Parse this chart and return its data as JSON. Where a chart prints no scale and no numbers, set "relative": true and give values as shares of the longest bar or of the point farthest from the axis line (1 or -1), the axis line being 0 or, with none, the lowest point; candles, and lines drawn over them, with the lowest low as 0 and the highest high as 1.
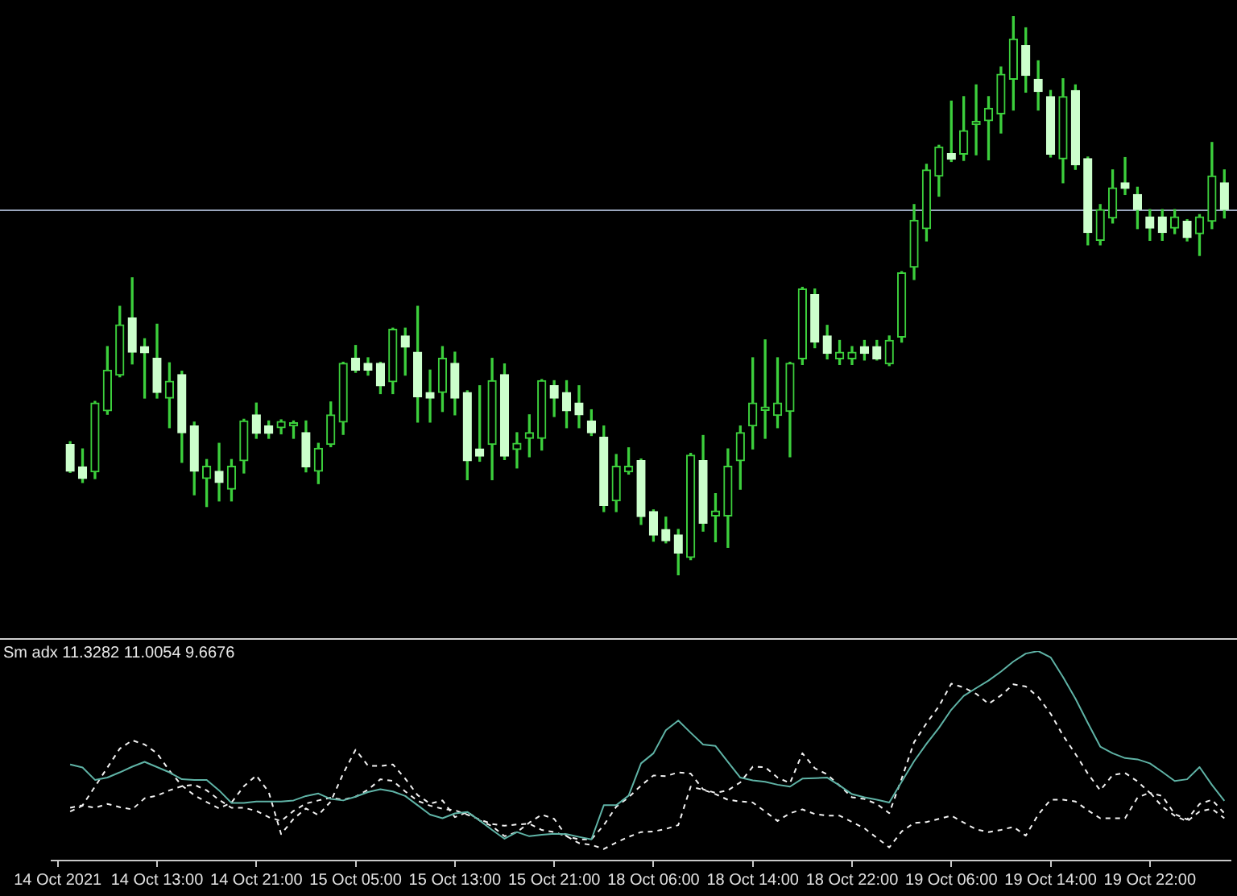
{
  "chart_data": [
    {
      "type": "candlestick",
      "relative": true,
      "tick_labels": false,
      "color": "#3ccf3c",
      "categories": [
        null,
        null,
        null,
        null,
        null,
        null,
        null,
        null,
        null,
        null,
        null,
        null,
        null,
        null,
        null,
        null,
        null,
        null,
        null,
        null,
        null,
        null,
        null,
        null,
        null,
        null,
        null,
        null,
        null,
        null,
        null,
        null,
        null,
        null,
        null,
        null,
        null,
        null,
        null,
        null,
        null,
        null,
        null,
        null,
        null,
        null,
        null,
        null,
        null,
        null,
        null,
        null,
        null,
        null,
        null,
        null,
        null,
        null,
        null,
        null,
        null,
        null,
        null,
        null,
        null,
        null,
        null,
        null,
        null,
        null,
        null,
        null,
        null,
        null,
        null,
        null,
        null,
        null,
        null,
        null,
        null,
        null,
        null,
        null,
        null,
        null,
        null,
        null,
        null,
        null,
        null,
        null,
        null,
        null,
        null
      ],
      "ohlc": [
        null,
        [
          0.234,
          0.239,
          0.184,
          0.186
        ],
        [
          0.194,
          0.226,
          0.166,
          0.173
        ],
        [
          0.185,
          0.311,
          0.173,
          0.308
        ],
        [
          0.294,
          0.409,
          0.288,
          0.367
        ],
        [
          0.358,
          0.481,
          0.355,
          0.448
        ],
        [
          0.46,
          0.532,
          0.378,
          0.399
        ],
        [
          0.409,
          0.423,
          0.317,
          0.398
        ],
        [
          0.388,
          0.449,
          0.317,
          0.327
        ],
        [
          0.317,
          0.38,
          0.264,
          0.347
        ],
        [
          0.359,
          0.365,
          0.202,
          0.255
        ],
        [
          0.267,
          0.274,
          0.144,
          0.186
        ],
        [
          0.173,
          0.207,
          0.123,
          0.195
        ],
        [
          0.186,
          0.236,
          0.133,
          0.166
        ],
        [
          0.154,
          0.207,
          0.133,
          0.195
        ],
        [
          0.205,
          0.279,
          0.183,
          0.276
        ],
        [
          0.287,
          0.308,
          0.245,
          0.254
        ],
        [
          0.267,
          0.276,
          0.245,
          0.254
        ],
        [
          0.264,
          0.278,
          0.253,
          0.275
        ],
        [
          0.267,
          0.276,
          0.245,
          0.267
        ],
        [
          0.255,
          0.276,
          0.185,
          0.194
        ],
        [
          0.186,
          0.236,
          0.164,
          0.227
        ],
        [
          0.234,
          0.31,
          0.23,
          0.287
        ],
        [
          0.274,
          0.381,
          0.252,
          0.379
        ],
        [
          0.388,
          0.411,
          0.363,
          0.367
        ],
        [
          0.379,
          0.389,
          0.358,
          0.367
        ],
        [
          0.379,
          0.381,
          0.325,
          0.339
        ],
        [
          0.346,
          0.442,
          0.325,
          0.44
        ],
        [
          0.428,
          0.442,
          0.358,
          0.408
        ],
        [
          0.399,
          0.481,
          0.274,
          0.319
        ],
        [
          0.327,
          0.367,
          0.274,
          0.317
        ],
        [
          0.327,
          0.409,
          0.293,
          0.388
        ],
        [
          0.379,
          0.399,
          0.287,
          0.317
        ],
        [
          0.327,
          0.33,
          0.171,
          0.205
        ],
        [
          0.226,
          0.339,
          0.204,
          0.213
        ],
        [
          0.234,
          0.388,
          0.171,
          0.348
        ],
        [
          0.359,
          0.378,
          0.207,
          0.213
        ],
        [
          0.225,
          0.255,
          0.192,
          0.236
        ],
        [
          0.245,
          0.287,
          0.212,
          0.255
        ],
        [
          0.245,
          0.35,
          0.224,
          0.348
        ],
        [
          0.339,
          0.348,
          0.284,
          0.317
        ],
        [
          0.327,
          0.348,
          0.264,
          0.294
        ],
        [
          0.308,
          0.339,
          0.264,
          0.287
        ],
        [
          0.276,
          0.296,
          0.25,
          0.255
        ],
        [
          0.247,
          0.267,
          0.114,
          0.125
        ],
        [
          0.133,
          0.216,
          0.114,
          0.195
        ],
        [
          0.185,
          0.228,
          0.181,
          0.195
        ],
        [
          0.205,
          0.208,
          0.091,
          0.105
        ],
        [
          0.114,
          0.117,
          0.061,
          0.072
        ],
        [
          0.082,
          0.104,
          0.058,
          0.062
        ],
        [
          0.072,
          0.082,
          0,
          0.04
        ],
        [
          0.032,
          0.218,
          0.028,
          0.215
        ],
        [
          0.205,
          0.25,
          0.079,
          0.093
        ],
        [
          0.106,
          0.146,
          0.06,
          0.115
        ],
        [
          0.106,
          0.226,
          0.05,
          0.195
        ],
        [
          0.205,
          0.267,
          0.154,
          0.255
        ],
        [
          0.267,
          0.389,
          0.226,
          0.308
        ],
        [
          0.295,
          0.421,
          0.245,
          0.295
        ],
        [
          0.286,
          0.389,
          0.264,
          0.308
        ],
        [
          0.293,
          0.381,
          0.212,
          0.379
        ],
        [
          0.387,
          0.515,
          0.377,
          0.512
        ],
        [
          0.502,
          0.512,
          0.407,
          0.417
        ],
        [
          0.428,
          0.447,
          0.387,
          0.397
        ],
        [
          0.387,
          0.42,
          0.377,
          0.399
        ],
        [
          0.387,
          0.409,
          0.377,
          0.399
        ],
        [
          0.409,
          0.42,
          0.385,
          0.397
        ],
        [
          0.409,
          0.42,
          0.385,
          0.387
        ],
        [
          0.378,
          0.428,
          0.375,
          0.42
        ],
        [
          0.426,
          0.543,
          0.417,
          0.541
        ],
        [
          0.551,
          0.663,
          0.529,
          0.635
        ],
        [
          0.62,
          0.735,
          0.598,
          0.725
        ],
        [
          0.714,
          0.769,
          0.678,
          0.766
        ],
        [
          0.754,
          0.848,
          0.74,
          0.744
        ],
        [
          0.753,
          0.856,
          0.742,
          0.795
        ],
        [
          0.806,
          0.877,
          0.752,
          0.806
        ],
        [
          0.813,
          0.856,
          0.743,
          0.835
        ],
        [
          0.825,
          0.909,
          0.791,
          0.896
        ],
        [
          0.887,
          1,
          0.832,
          0.959
        ],
        [
          0.947,
          0.979,
          0.864,
          0.894
        ],
        [
          0.887,
          0.92,
          0.832,
          0.865
        ],
        [
          0.856,
          0.867,
          0.748,
          0.753
        ],
        [
          0.745,
          0.888,
          0.702,
          0.856
        ],
        [
          0.867,
          0.877,
          0.726,
          0.734
        ],
        [
          0.745,
          0.748,
          0.591,
          0.613
        ],
        [
          0.599,
          0.663,
          0.591,
          0.654
        ],
        [
          0.639,
          0.725,
          0.63,
          0.693
        ],
        [
          0.702,
          0.747,
          0.681,
          0.692
        ],
        [
          0.681,
          0.694,
          0.62,
          0.654
        ],
        [
          0.641,
          0.654,
          0.599,
          0.621
        ],
        [
          0.641,
          0.654,
          0.599,
          0.613
        ],
        [
          0.621,
          0.654,
          0.611,
          0.641
        ],
        [
          0.633,
          0.636,
          0.598,
          0.604
        ],
        [
          0.611,
          0.645,
          0.572,
          0.641
        ],
        [
          0.633,
          0.774,
          0.62,
          0.714
        ],
        [
          0.702,
          0.725,
          0.639,
          0.654
        ]
      ],
      "colors": [
        null,
        "#ccffcc",
        "#ccffcc",
        "#3ccf3c",
        "#3ccf3c",
        "#3ccf3c",
        "#ccffcc",
        "#ccffcc",
        "#ccffcc",
        "#3ccf3c",
        "#ccffcc",
        "#ccffcc",
        "#3ccf3c",
        "#ccffcc",
        "#3ccf3c",
        "#3ccf3c",
        "#ccffcc",
        "#ccffcc",
        "#3ccf3c",
        "#3ccf3c",
        "#ccffcc",
        "#3ccf3c",
        "#3ccf3c",
        "#3ccf3c",
        "#ccffcc",
        "#ccffcc",
        "#ccffcc",
        "#3ccf3c",
        "#ccffcc",
        "#ccffcc",
        "#ccffcc",
        "#3ccf3c",
        "#ccffcc",
        "#ccffcc",
        "#ccffcc",
        "#3ccf3c",
        "#ccffcc",
        "#3ccf3c",
        "#3ccf3c",
        "#3ccf3c",
        "#ccffcc",
        "#ccffcc",
        "#ccffcc",
        "#ccffcc",
        "#ccffcc",
        "#3ccf3c",
        "#3ccf3c",
        "#ccffcc",
        "#ccffcc",
        "#ccffcc",
        "#ccffcc",
        "#3ccf3c",
        "#ccffcc",
        "#3ccf3c",
        "#3ccf3c",
        "#3ccf3c",
        "#3ccf3c",
        "#3ccf3c",
        "#3ccf3c",
        "#3ccf3c",
        "#3ccf3c",
        "#ccffcc",
        "#ccffcc",
        "#3ccf3c",
        "#3ccf3c",
        "#ccffcc",
        "#ccffcc",
        "#3ccf3c",
        "#3ccf3c",
        "#3ccf3c",
        "#3ccf3c",
        "#3ccf3c",
        "#ccffcc",
        "#3ccf3c",
        "#3ccf3c",
        "#3ccf3c",
        "#3ccf3c",
        "#3ccf3c",
        "#ccffcc",
        "#ccffcc",
        "#ccffcc",
        "#3ccf3c",
        "#ccffcc",
        "#ccffcc",
        "#3ccf3c",
        "#3ccf3c",
        "#ccffcc",
        "#ccffcc",
        "#ccffcc",
        "#ccffcc",
        "#3ccf3c",
        "#ccffcc",
        "#3ccf3c",
        "#3ccf3c",
        "#ccffcc"
      ],
      "ref_lines": [
        {
          "axis": "y",
          "value": 0.654,
          "color": "#9aa6bd"
        }
      ]
    },
    {
      "type": "line",
      "relative": true,
      "tick_labels": "x",
      "marker": "none",
      "title": "Sm adx 11.3282 11.0054 9.6676",
      "categories": [
        "14 Oct 2021",
        null,
        null,
        null,
        null,
        null,
        null,
        null,
        "14 Oct 13:00",
        null,
        null,
        null,
        null,
        null,
        null,
        null,
        "14 Oct 21:00",
        null,
        null,
        null,
        null,
        null,
        null,
        null,
        "15 Oct 05:00",
        null,
        null,
        null,
        null,
        null,
        null,
        null,
        "15 Oct 13:00",
        null,
        null,
        null,
        null,
        null,
        null,
        null,
        "15 Oct 21:00",
        null,
        null,
        null,
        null,
        null,
        null,
        null,
        "18 Oct 06:00",
        null,
        null,
        null,
        null,
        null,
        null,
        null,
        "18 Oct 14:00",
        null,
        null,
        null,
        null,
        null,
        null,
        null,
        "18 Oct 22:00",
        null,
        null,
        null,
        null,
        null,
        null,
        null,
        "19 Oct 06:00",
        null,
        null,
        null,
        null,
        null,
        null,
        null,
        "19 Oct 14:00",
        null,
        null,
        null,
        null,
        null,
        null,
        null,
        "19 Oct 22:00",
        null,
        null,
        null,
        null,
        null,
        null
      ],
      "series": [
        {
          "color": "#5fb3a6",
          "line_style": "solid",
          "values": [
            null,
            0.459,
            0.444,
            0.385,
            0.396,
            0.421,
            0.448,
            0.471,
            0.446,
            0.421,
            0.388,
            0.385,
            0.385,
            0.335,
            0.275,
            0.275,
            0.282,
            0.282,
            0.282,
            0.287,
            0.308,
            0.32,
            0.294,
            0.287,
            0.305,
            0.327,
            0.34,
            0.33,
            0.308,
            0.264,
            0.219,
            0.202,
            0.225,
            0.232,
            0.191,
            0.146,
            0.104,
            0.136,
            0.116,
            0.123,
            0.128,
            0.126,
            0.113,
            0.101,
            0.264,
            0.264,
            0.31,
            0.464,
            0.512,
            0.622,
            0.668,
            0.61,
            0.554,
            0.547,
            0.471,
            0.396,
            0.383,
            0.376,
            0.362,
            0.353,
            0.391,
            0.393,
            0.396,
            0.358,
            0.317,
            0.302,
            0.29,
            0.277,
            0.376,
            0.474,
            0.557,
            0.633,
            0.72,
            0.786,
            0.823,
            0.859,
            0.902,
            0.95,
            0.988,
            1,
            0.97,
            0.876,
            0.773,
            0.657,
            0.544,
            0.512,
            0.489,
            0.483,
            0.464,
            0.423,
            0.38,
            0.388,
            0.446,
            0.361,
            0.285
          ]
        },
        {
          "color": "#f2f2f2",
          "line_style": "dashed",
          "values": [
            null,
            0.252,
            0.264,
            0.353,
            0.444,
            0.534,
            0.574,
            0.554,
            0.512,
            0.429,
            0.358,
            0.312,
            0.279,
            0.249,
            0.277,
            0.355,
            0.406,
            0.327,
            0.126,
            0.199,
            0.249,
            0.217,
            0.282,
            0.415,
            0.529,
            0.453,
            0.451,
            0.459,
            0.391,
            0.312,
            0.272,
            0.287,
            0.207,
            0.232,
            0.191,
            0.164,
            0.116,
            0.136,
            0.181,
            0.219,
            0.199,
            0.116,
            0.101,
            0.101,
            0.169,
            0.257,
            0.302,
            0.358,
            0.406,
            0.403,
            0.421,
            0.415,
            0.34,
            0.323,
            0.335,
            0.373,
            0.448,
            0.446,
            0.396,
            0.37,
            0.512,
            0.441,
            0.411,
            0.358,
            0.302,
            0.294,
            0.27,
            0.226,
            0.391,
            0.565,
            0.655,
            0.736,
            0.844,
            0.826,
            0.796,
            0.748,
            0.788,
            0.841,
            0.831,
            0.781,
            0.701,
            0.597,
            0.509,
            0.415,
            0.335,
            0.408,
            0.418,
            0.378,
            0.323,
            0.308,
            0.222,
            0.196,
            0.27,
            0.29,
            0.226
          ]
        },
        {
          "color": "#f2f2f2",
          "line_style": "dashed",
          "values": [
            null,
            0.234,
            0.262,
            0.252,
            0.27,
            0.255,
            0.244,
            0.297,
            0.31,
            0.335,
            0.355,
            0.362,
            0.335,
            0.29,
            0.252,
            0.252,
            0.237,
            0.207,
            0.189,
            0.237,
            0.272,
            0.287,
            0.3,
            0.29,
            0.305,
            0.338,
            0.388,
            0.38,
            0.33,
            0.285,
            0.262,
            0.247,
            0.24,
            0.219,
            0.196,
            0.174,
            0.166,
            0.172,
            0.176,
            0.146,
            0.136,
            0.116,
            0.083,
            0.075,
            0.055,
            0.086,
            0.113,
            0.136,
            0.139,
            0.151,
            0.169,
            0.353,
            0.338,
            0.317,
            0.29,
            0.282,
            0.277,
            0.234,
            0.189,
            0.226,
            0.244,
            0.222,
            0.214,
            0.214,
            0.184,
            0.154,
            0.108,
            0.063,
            0.139,
            0.179,
            0.184,
            0.199,
            0.214,
            0.181,
            0.149,
            0.136,
            0.146,
            0.161,
            0.119,
            0.219,
            0.29,
            0.29,
            0.282,
            0.24,
            0.202,
            0.202,
            0.202,
            0.3,
            0.325,
            0.257,
            0.214,
            0.187,
            0.234,
            0.247,
            0.202
          ]
        }
      ]
    }
  ]
}
